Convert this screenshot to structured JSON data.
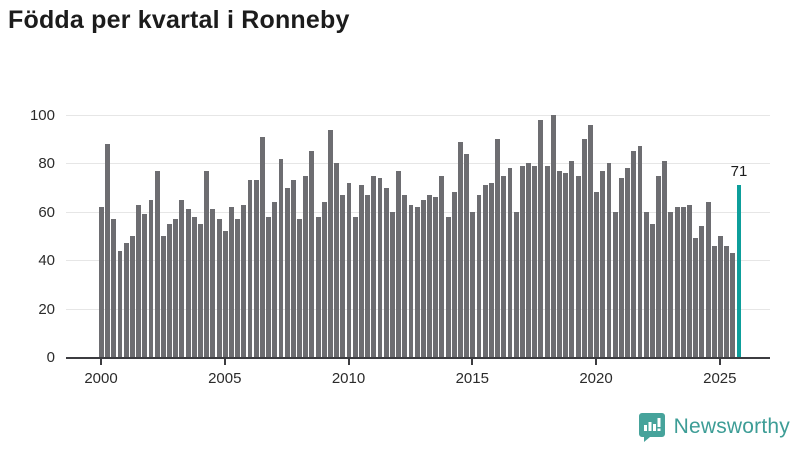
{
  "title": "Födda per kvartal i Ronneby",
  "chart_data": {
    "type": "bar",
    "title": "Födda per kvartal i Ronneby",
    "frequency": "quarterly",
    "x_start": "2000-Q1",
    "x_tick_labels": [
      "2000",
      "2005",
      "2010",
      "2015",
      "2020",
      "2025"
    ],
    "y_tick_labels": [
      "0",
      "20",
      "40",
      "60",
      "80",
      "100"
    ],
    "y_ticks": [
      0,
      20,
      40,
      60,
      80,
      100
    ],
    "ylim": [
      0,
      100
    ],
    "grid": "horizontal",
    "legend": "none",
    "bar_color": "#6d6d71",
    "highlight_color": "#0d9e9b",
    "values": [
      62,
      88,
      57,
      44,
      47,
      50,
      63,
      59,
      65,
      77,
      50,
      55,
      57,
      65,
      61,
      58,
      55,
      77,
      61,
      57,
      52,
      62,
      57,
      63,
      73,
      73,
      91,
      58,
      64,
      82,
      70,
      73,
      57,
      75,
      85,
      58,
      64,
      94,
      80,
      67,
      72,
      58,
      71,
      67,
      75,
      74,
      70,
      60,
      77,
      67,
      63,
      62,
      65,
      67,
      66,
      75,
      58,
      68,
      89,
      84,
      60,
      67,
      71,
      72,
      90,
      75,
      78,
      60,
      79,
      80,
      79,
      98,
      79,
      100,
      77,
      76,
      81,
      75,
      90,
      96,
      68,
      77,
      80,
      60,
      74,
      78,
      85,
      87,
      60,
      55,
      75,
      81,
      60,
      62,
      62,
      63,
      49,
      54,
      64,
      46,
      50,
      46,
      43,
      71
    ],
    "highlight_index": 103,
    "highlight_value": 71,
    "highlight_label": "71"
  },
  "branding": {
    "logo_text": "Newsworthy",
    "logo_color": "#3d9d96",
    "logo_icon": "bar-chart-speech-bubble"
  }
}
